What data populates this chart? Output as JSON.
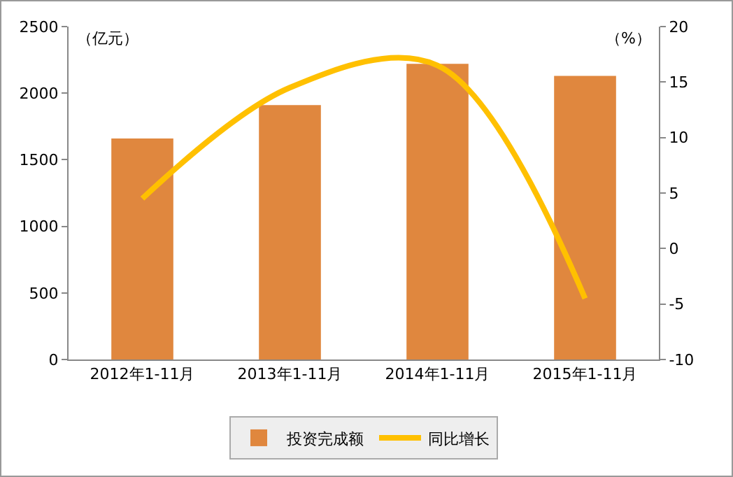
{
  "chart_data": {
    "type": "bar",
    "categories": [
      "2012年1-11月",
      "2013年1-11月",
      "2014年1-11月",
      "2015年1-11月"
    ],
    "ylabel": "（亿元）",
    "y2label": "（%）",
    "series": [
      {
        "name": "投资完成额",
        "color": "#e0873e",
        "values": [
          1660,
          1910,
          2220,
          2130
        ]
      },
      {
        "name": "同比增长",
        "type": "line",
        "axis": "y2",
        "color": "#ffc000",
        "values": [
          4.5,
          14.5,
          16.5,
          -4.5
        ]
      }
    ],
    "ylim": [
      0,
      2500
    ],
    "yticks": [
      0,
      500,
      1000,
      1500,
      2000,
      2500
    ],
    "y2lim": [
      -10,
      20
    ],
    "y2ticks": [
      -10,
      -5,
      0,
      5,
      10,
      15,
      20
    ],
    "grid": false,
    "legend": "bottom",
    "marker": "none"
  }
}
